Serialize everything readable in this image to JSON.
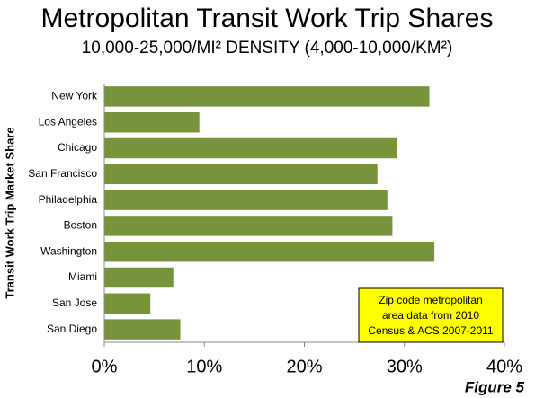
{
  "chart_data": {
    "type": "bar",
    "orientation": "horizontal",
    "title": "Metropolitan Transit Work Trip Shares",
    "subtitle": "10,000-25,000/MI² DENSITY (4,000-10,000/KM²)",
    "y_label": "Transit Work Trip Market Share",
    "categories": [
      "New York",
      "Los Angeles",
      "Chicago",
      "San Francisco",
      "Philadelphia",
      "Boston",
      "Washington",
      "Miami",
      "San Jose",
      "San Diego"
    ],
    "values": [
      32.5,
      9.5,
      29.3,
      27.3,
      28.3,
      28.8,
      33.0,
      6.9,
      4.6,
      7.6
    ],
    "color": "#77933c",
    "xlim": [
      0,
      40
    ],
    "xticks": [
      {
        "value": 0,
        "label": "0%"
      },
      {
        "value": 10,
        "label": "10%"
      },
      {
        "value": 20,
        "label": "20%"
      },
      {
        "value": 30,
        "label": "30%"
      },
      {
        "value": 40,
        "label": "40%"
      }
    ],
    "grid": false,
    "annotation": [
      "Zip code metropolitan",
      "area data from 2010",
      "Census  & ACS 2007-2011"
    ],
    "figure_label": "Figure 5"
  }
}
